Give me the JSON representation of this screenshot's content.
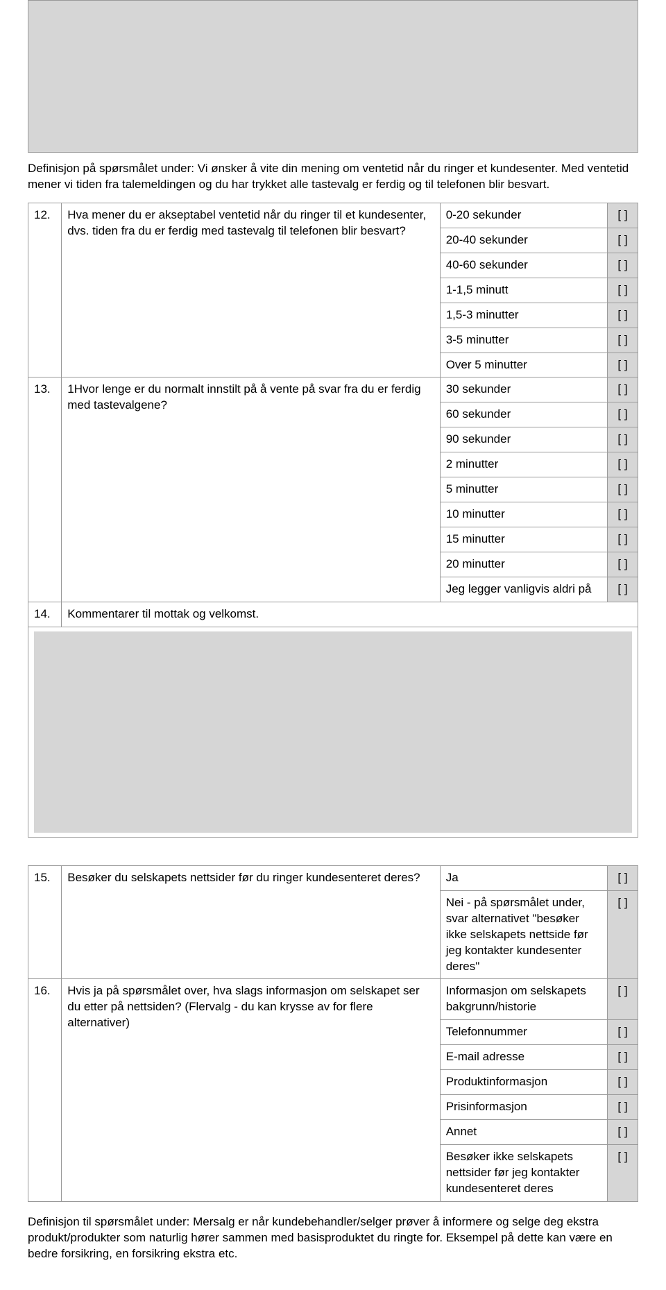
{
  "intro": "Definisjon på spørsmålet under: Vi ønsker å vite din mening om ventetid når du ringer et kundesenter. Med ventetid mener vi tiden fra talemeldingen og du har trykket alle tastevalg er ferdig og til telefonen blir besvart.",
  "q12": {
    "num": "12.",
    "text": "Hva mener du er akseptabel ventetid når du ringer til et kundesenter, dvs. tiden fra du er ferdig med tastevalg til telefonen blir besvart?",
    "options": [
      "0-20 sekunder",
      "20-40 sekunder",
      "40-60 sekunder",
      "1-1,5 minutt",
      "1,5-3 minutter",
      "3-5 minutter",
      "Over 5 minutter"
    ]
  },
  "q13": {
    "num": "13.",
    "text": "1Hvor lenge er du normalt innstilt på å vente på svar fra du er ferdig med tastevalgene?",
    "options": [
      "30 sekunder",
      "60 sekunder",
      "90 sekunder",
      "2 minutter",
      "5 minutter",
      "10 minutter",
      "15 minutter",
      "20 minutter",
      "Jeg legger vanligvis aldri på"
    ]
  },
  "q14": {
    "num": "14.",
    "text": "Kommentarer til mottak og velkomst."
  },
  "q15": {
    "num": "15.",
    "text": "Besøker du selskapets nettsider før du ringer kundesenteret deres?",
    "options": [
      "Ja",
      "Nei - på spørsmålet under, svar alternativet \"besøker ikke selskapets nettside før jeg kontakter kundesenter deres\""
    ]
  },
  "q16": {
    "num": "16.",
    "text": "Hvis ja på spørsmålet over, hva slags informasjon om selskapet ser du etter på nettsiden? (Flervalg - du kan krysse av for flere alternativer)",
    "options": [
      "Informasjon om selskapets bakgrunn/historie",
      "Telefonnummer",
      "E-mail adresse",
      "Produktinformasjon",
      "Prisinformasjon",
      "Annet",
      "Besøker ikke selskapets nettsider før jeg kontakter kundesenteret deres"
    ]
  },
  "footer": "Definisjon til spørsmålet under: Mersalg er når kundebehandler/selger prøver å informere og selge deg ekstra produkt/produkter som naturlig hører sammen med basisproduktet du ringte for. Eksempel på dette kan være en bedre forsikring, en forsikring ekstra etc.",
  "checkbox": "[ ]"
}
